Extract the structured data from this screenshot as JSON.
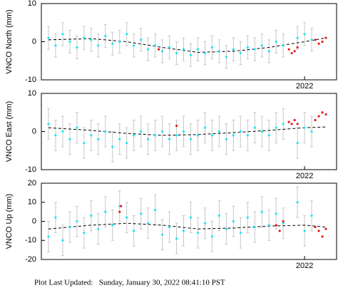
{
  "chart_data": [
    {
      "type": "scatter",
      "y_label": "VNCO North (mm)",
      "xlim": [
        2018.3,
        2022.45
      ],
      "xticks": [
        2022
      ],
      "ylim": [
        -10,
        10
      ],
      "yticks": [
        -10,
        0,
        10
      ],
      "series": [
        {
          "color": "#22e4f2",
          "x": [
            2018.4,
            2018.5,
            2018.6,
            2018.7,
            2018.8,
            2018.9,
            2019.0,
            2019.1,
            2019.2,
            2019.3,
            2019.4,
            2019.5,
            2019.6,
            2019.7,
            2019.8,
            2019.9,
            2020.0,
            2020.1,
            2020.2,
            2020.3,
            2020.4,
            2020.5,
            2020.6,
            2020.7,
            2020.8,
            2020.9,
            2021.0,
            2021.1,
            2021.2,
            2021.3,
            2021.4,
            2021.5,
            2021.6,
            2021.7,
            2021.9,
            2022.0,
            2022.1
          ],
          "values": [
            1,
            -1,
            2,
            0,
            -1.5,
            1,
            0.5,
            -1,
            1.5,
            -0.5,
            0,
            2,
            -1,
            0.5,
            -2,
            -1,
            -2.5,
            -1.5,
            -3,
            -2,
            -3.5,
            -2,
            -3,
            -1.5,
            -2.5,
            -4,
            -2,
            -3,
            -1.5,
            -2,
            -1,
            -2.5,
            0,
            -1,
            1,
            2,
            0.5
          ],
          "errors": [
            3,
            3,
            3,
            3,
            3,
            3,
            3,
            3,
            3,
            3,
            3,
            3,
            3,
            3,
            3,
            3,
            3,
            3,
            3,
            3,
            3,
            3,
            3,
            3,
            3,
            3,
            3,
            3,
            3,
            3,
            3,
            3,
            3,
            3,
            3,
            3,
            3
          ]
        },
        {
          "color": "#e41a1c",
          "x": [
            2019.95,
            2021.78,
            2021.82,
            2021.86,
            2021.9,
            2022.15,
            2022.2,
            2022.25,
            2022.3
          ],
          "values": [
            -2,
            -2,
            -3,
            -2.5,
            -1.5,
            0.5,
            -0.5,
            0,
            1
          ]
        },
        {
          "color": "#000000",
          "line": "dashed",
          "x": [
            2018.4,
            2019.0,
            2019.5,
            2020.0,
            2020.5,
            2021.0,
            2021.5,
            2022.0,
            2022.3
          ],
          "values": [
            0.5,
            0.8,
            0,
            -1.5,
            -2.8,
            -2.5,
            -1.5,
            0,
            1
          ]
        }
      ]
    },
    {
      "type": "scatter",
      "y_label": "VNCO East (mm)",
      "xlim": [
        2018.3,
        2022.45
      ],
      "xticks": [
        2022
      ],
      "ylim": [
        -10,
        10
      ],
      "yticks": [
        -10,
        0,
        10
      ],
      "series": [
        {
          "color": "#22e4f2",
          "x": [
            2018.4,
            2018.5,
            2018.6,
            2018.7,
            2018.8,
            2018.9,
            2019.0,
            2019.1,
            2019.2,
            2019.3,
            2019.4,
            2019.5,
            2019.6,
            2019.7,
            2019.8,
            2019.9,
            2020.0,
            2020.1,
            2020.2,
            2020.3,
            2020.4,
            2020.5,
            2020.6,
            2020.7,
            2020.8,
            2020.9,
            2021.0,
            2021.1,
            2021.2,
            2021.3,
            2021.4,
            2021.5,
            2021.6,
            2021.7,
            2021.9,
            2022.0,
            2022.1
          ],
          "values": [
            2,
            -1,
            0,
            -2,
            1,
            -3,
            -1,
            -2,
            0,
            -4,
            -2,
            -3,
            -1,
            0,
            -2,
            -1,
            0,
            -2,
            -1,
            0,
            -2,
            -1,
            1,
            -1,
            0,
            -2,
            -1,
            0,
            -1,
            1,
            0,
            -1,
            1,
            2,
            -3,
            1,
            0
          ],
          "errors": [
            4,
            4,
            4,
            4,
            4,
            4,
            4,
            4,
            4,
            4,
            4,
            4,
            4,
            4,
            4,
            4,
            4,
            4,
            4,
            4,
            4,
            4,
            4,
            4,
            4,
            4,
            4,
            4,
            4,
            4,
            4,
            4,
            4,
            4,
            4,
            4,
            4
          ]
        },
        {
          "color": "#e41a1c",
          "x": [
            2020.2,
            2021.78,
            2021.82,
            2021.86,
            2021.9,
            2022.15,
            2022.2,
            2022.25,
            2022.3
          ],
          "values": [
            1.5,
            2.5,
            2,
            3,
            2,
            3,
            4,
            5,
            4.5
          ]
        },
        {
          "color": "#000000",
          "line": "dashed",
          "x": [
            2018.4,
            2019.0,
            2019.5,
            2020.0,
            2020.5,
            2021.0,
            2021.5,
            2022.0,
            2022.3
          ],
          "values": [
            1,
            0.3,
            -0.5,
            -1,
            -0.8,
            -0.3,
            0.3,
            1,
            1.2
          ]
        }
      ]
    },
    {
      "type": "scatter",
      "y_label": "VNCO Up (mm)",
      "xlim": [
        2018.3,
        2022.45
      ],
      "xticks": [
        2022
      ],
      "ylim": [
        -20,
        20
      ],
      "yticks": [
        -20,
        -10,
        0,
        10,
        20
      ],
      "series": [
        {
          "color": "#22e4f2",
          "x": [
            2018.4,
            2018.5,
            2018.6,
            2018.7,
            2018.8,
            2018.9,
            2019.0,
            2019.1,
            2019.2,
            2019.3,
            2019.4,
            2019.5,
            2019.6,
            2019.7,
            2019.8,
            2019.9,
            2020.0,
            2020.1,
            2020.2,
            2020.3,
            2020.4,
            2020.5,
            2020.6,
            2020.7,
            2020.8,
            2020.9,
            2021.0,
            2021.1,
            2021.2,
            2021.3,
            2021.4,
            2021.5,
            2021.6,
            2021.7,
            2021.9,
            2022.0,
            2022.1
          ],
          "values": [
            -8,
            2,
            -10,
            -3,
            0,
            -6,
            3,
            -4,
            5,
            -2,
            8,
            2,
            -5,
            4,
            -1,
            6,
            -7,
            -3,
            -9,
            -5,
            2,
            -6,
            -1,
            -8,
            3,
            -4,
            0,
            -6,
            2,
            -3,
            5,
            -2,
            4,
            -1,
            10,
            -5,
            3
          ],
          "errors": [
            8,
            8,
            8,
            8,
            8,
            8,
            8,
            8,
            8,
            8,
            8,
            8,
            8,
            8,
            8,
            8,
            8,
            8,
            8,
            8,
            8,
            8,
            8,
            8,
            8,
            8,
            8,
            8,
            8,
            8,
            8,
            8,
            8,
            8,
            8,
            8,
            8
          ]
        },
        {
          "color": "#e41a1c",
          "x": [
            2019.4,
            2019.42,
            2021.6,
            2021.65,
            2021.7,
            2022.15,
            2022.2,
            2022.25,
            2022.3
          ],
          "values": [
            5,
            8,
            -2,
            -5,
            0,
            -3,
            -5,
            -8,
            -4
          ]
        },
        {
          "color": "#000000",
          "line": "dashed",
          "x": [
            2018.4,
            2019.0,
            2019.5,
            2020.0,
            2020.5,
            2021.0,
            2021.5,
            2022.0,
            2022.3
          ],
          "values": [
            -4,
            -2,
            -1,
            -2,
            -4,
            -3.5,
            -2.5,
            -2,
            -3
          ]
        }
      ]
    }
  ],
  "footer": "Plot Last Updated:   Sunday, January 30, 2022 08:41:10 PST"
}
